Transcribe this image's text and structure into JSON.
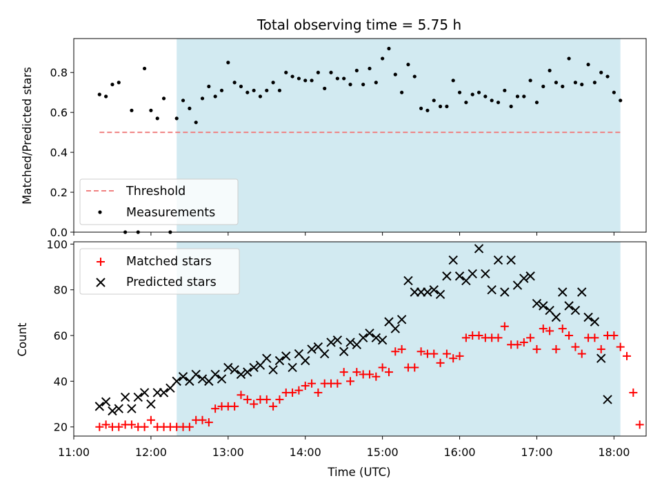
{
  "chart_data": [
    {
      "type": "scatter",
      "title": "Total observing time = 5.75 h",
      "ylabel": "Matched/Predicted stars",
      "xlim": [
        "11:00",
        "18:25"
      ],
      "ylim": [
        0,
        0.97
      ],
      "x_tick_labels": [
        "11:00",
        "12:00",
        "13:00",
        "14:00",
        "15:00",
        "16:00",
        "17:00",
        "18:00"
      ],
      "y_tick_labels": [
        "0.0",
        "0.2",
        "0.4",
        "0.6",
        "0.8"
      ],
      "y_ticks": [
        0,
        0.2,
        0.4,
        0.6,
        0.8
      ],
      "shaded_span": {
        "start": "12:20",
        "end": "18:05",
        "color": "#add8e6"
      },
      "legend": {
        "position": "lower-left",
        "entries": [
          "Threshold",
          "Measurements"
        ]
      },
      "threshold": {
        "name": "Threshold",
        "y": 0.5,
        "x_start": "11:20",
        "x_end": "18:05",
        "color": "#f08080"
      },
      "series": [
        {
          "name": "Measurements",
          "color": "#000000",
          "marker": "dot",
          "points": [
            [
              "11:20",
              0.69
            ],
            [
              "11:25",
              0.68
            ],
            [
              "11:30",
              0.74
            ],
            [
              "11:35",
              0.75
            ],
            [
              "11:40",
              0.0
            ],
            [
              "11:45",
              0.61
            ],
            [
              "11:50",
              0.0
            ],
            [
              "11:55",
              0.82
            ],
            [
              "12:00",
              0.61
            ],
            [
              "12:05",
              0.57
            ],
            [
              "12:10",
              0.67
            ],
            [
              "12:15",
              0.0
            ],
            [
              "12:20",
              0.57
            ],
            [
              "12:25",
              0.66
            ],
            [
              "12:30",
              0.62
            ],
            [
              "12:35",
              0.55
            ],
            [
              "12:40",
              0.67
            ],
            [
              "12:45",
              0.73
            ],
            [
              "12:50",
              0.68
            ],
            [
              "12:55",
              0.71
            ],
            [
              "13:00",
              0.85
            ],
            [
              "13:05",
              0.75
            ],
            [
              "13:10",
              0.73
            ],
            [
              "13:15",
              0.7
            ],
            [
              "13:20",
              0.71
            ],
            [
              "13:25",
              0.68
            ],
            [
              "13:30",
              0.71
            ],
            [
              "13:35",
              0.75
            ],
            [
              "13:40",
              0.71
            ],
            [
              "13:45",
              0.8
            ],
            [
              "13:50",
              0.78
            ],
            [
              "13:55",
              0.77
            ],
            [
              "14:00",
              0.76
            ],
            [
              "14:05",
              0.76
            ],
            [
              "14:10",
              0.8
            ],
            [
              "14:15",
              0.72
            ],
            [
              "14:20",
              0.8
            ],
            [
              "14:25",
              0.77
            ],
            [
              "14:30",
              0.77
            ],
            [
              "14:35",
              0.74
            ],
            [
              "14:40",
              0.81
            ],
            [
              "14:45",
              0.74
            ],
            [
              "14:50",
              0.82
            ],
            [
              "14:55",
              0.75
            ],
            [
              "15:00",
              0.87
            ],
            [
              "15:05",
              0.92
            ],
            [
              "15:10",
              0.79
            ],
            [
              "15:15",
              0.7
            ],
            [
              "15:20",
              0.84
            ],
            [
              "15:25",
              0.78
            ],
            [
              "15:30",
              0.62
            ],
            [
              "15:35",
              0.61
            ],
            [
              "15:40",
              0.66
            ],
            [
              "15:45",
              0.63
            ],
            [
              "15:50",
              0.63
            ],
            [
              "15:55",
              0.76
            ],
            [
              "16:00",
              0.7
            ],
            [
              "16:05",
              0.65
            ],
            [
              "16:10",
              0.69
            ],
            [
              "16:15",
              0.7
            ],
            [
              "16:20",
              0.68
            ],
            [
              "16:25",
              0.66
            ],
            [
              "16:30",
              0.65
            ],
            [
              "16:35",
              0.71
            ],
            [
              "16:40",
              0.63
            ],
            [
              "16:45",
              0.68
            ],
            [
              "16:50",
              0.68
            ],
            [
              "16:55",
              0.76
            ],
            [
              "17:00",
              0.65
            ],
            [
              "17:05",
              0.73
            ],
            [
              "17:10",
              0.81
            ],
            [
              "17:15",
              0.75
            ],
            [
              "17:20",
              0.73
            ],
            [
              "17:25",
              0.87
            ],
            [
              "17:30",
              0.75
            ],
            [
              "17:35",
              0.74
            ],
            [
              "17:40",
              0.84
            ],
            [
              "17:45",
              0.75
            ],
            [
              "17:50",
              0.8
            ],
            [
              "17:55",
              0.78
            ],
            [
              "18:00",
              0.7
            ],
            [
              "18:05",
              0.66
            ]
          ]
        }
      ]
    },
    {
      "type": "scatter",
      "xlabel": "Time (UTC)",
      "ylabel": "Count",
      "xlim": [
        "11:00",
        "18:25"
      ],
      "ylim": [
        16,
        101
      ],
      "x_tick_labels": [
        "11:00",
        "12:00",
        "13:00",
        "14:00",
        "15:00",
        "16:00",
        "17:00",
        "18:00"
      ],
      "y_tick_labels": [
        "20",
        "40",
        "60",
        "80",
        "100"
      ],
      "y_ticks": [
        20,
        40,
        60,
        80,
        100
      ],
      "shaded_span": {
        "start": "12:20",
        "end": "18:05",
        "color": "#add8e6"
      },
      "legend": {
        "position": "upper-left",
        "entries": [
          "Matched stars",
          "Predicted stars"
        ]
      },
      "series": [
        {
          "name": "Matched stars",
          "color": "#ff0000",
          "marker": "plus",
          "points": [
            [
              "11:20",
              20
            ],
            [
              "11:25",
              21
            ],
            [
              "11:30",
              20
            ],
            [
              "11:35",
              20
            ],
            [
              "11:40",
              21
            ],
            [
              "11:45",
              21
            ],
            [
              "11:50",
              20
            ],
            [
              "11:55",
              20
            ],
            [
              "12:00",
              23
            ],
            [
              "12:05",
              20
            ],
            [
              "12:10",
              20
            ],
            [
              "12:15",
              20
            ],
            [
              "12:20",
              20
            ],
            [
              "12:25",
              20
            ],
            [
              "12:30",
              20
            ],
            [
              "12:35",
              23
            ],
            [
              "12:40",
              23
            ],
            [
              "12:45",
              22
            ],
            [
              "12:50",
              28
            ],
            [
              "12:55",
              29
            ],
            [
              "13:00",
              29
            ],
            [
              "13:05",
              29
            ],
            [
              "13:10",
              34
            ],
            [
              "13:15",
              32
            ],
            [
              "13:20",
              30
            ],
            [
              "13:25",
              32
            ],
            [
              "13:30",
              32
            ],
            [
              "13:35",
              29
            ],
            [
              "13:40",
              32
            ],
            [
              "13:45",
              35
            ],
            [
              "13:50",
              35
            ],
            [
              "13:55",
              36
            ],
            [
              "14:00",
              38
            ],
            [
              "14:05",
              39
            ],
            [
              "14:10",
              35
            ],
            [
              "14:15",
              39
            ],
            [
              "14:20",
              39
            ],
            [
              "14:25",
              39
            ],
            [
              "14:30",
              44
            ],
            [
              "14:35",
              40
            ],
            [
              "14:40",
              44
            ],
            [
              "14:45",
              43
            ],
            [
              "14:50",
              43
            ],
            [
              "14:55",
              42
            ],
            [
              "15:00",
              46
            ],
            [
              "15:05",
              44
            ],
            [
              "15:10",
              53
            ],
            [
              "15:15",
              54
            ],
            [
              "15:20",
              46
            ],
            [
              "15:25",
              46
            ],
            [
              "15:30",
              53
            ],
            [
              "15:35",
              52
            ],
            [
              "15:40",
              52
            ],
            [
              "15:45",
              48
            ],
            [
              "15:50",
              52
            ],
            [
              "15:55",
              50
            ],
            [
              "16:00",
              51
            ],
            [
              "16:05",
              59
            ],
            [
              "16:10",
              60
            ],
            [
              "16:15",
              60
            ],
            [
              "16:20",
              59
            ],
            [
              "16:25",
              59
            ],
            [
              "16:30",
              59
            ],
            [
              "16:35",
              64
            ],
            [
              "16:40",
              56
            ],
            [
              "16:45",
              56
            ],
            [
              "16:50",
              57
            ],
            [
              "16:55",
              59
            ],
            [
              "17:00",
              54
            ],
            [
              "17:05",
              63
            ],
            [
              "17:10",
              62
            ],
            [
              "17:15",
              54
            ],
            [
              "17:20",
              63
            ],
            [
              "17:25",
              60
            ],
            [
              "17:30",
              55
            ],
            [
              "17:35",
              52
            ],
            [
              "17:40",
              59
            ],
            [
              "17:45",
              59
            ],
            [
              "17:50",
              54
            ],
            [
              "17:55",
              60
            ],
            [
              "18:00",
              60
            ],
            [
              "18:05",
              55
            ],
            [
              "18:10",
              51
            ],
            [
              "18:15",
              35
            ],
            [
              "18:20",
              21
            ]
          ]
        },
        {
          "name": "Predicted stars",
          "color": "#000000",
          "marker": "x",
          "points": [
            [
              "11:20",
              29
            ],
            [
              "11:25",
              31
            ],
            [
              "11:30",
              27
            ],
            [
              "11:35",
              28
            ],
            [
              "11:40",
              33
            ],
            [
              "11:45",
              28
            ],
            [
              "11:50",
              33
            ],
            [
              "11:55",
              35
            ],
            [
              "12:00",
              30
            ],
            [
              "12:05",
              35
            ],
            [
              "12:10",
              35
            ],
            [
              "12:15",
              37
            ],
            [
              "12:20",
              40
            ],
            [
              "12:25",
              42
            ],
            [
              "12:30",
              40
            ],
            [
              "12:35",
              43
            ],
            [
              "12:40",
              41
            ],
            [
              "12:45",
              40
            ],
            [
              "12:50",
              43
            ],
            [
              "12:55",
              41
            ],
            [
              "13:00",
              46
            ],
            [
              "13:05",
              45
            ],
            [
              "13:10",
              43
            ],
            [
              "13:15",
              44
            ],
            [
              "13:20",
              46
            ],
            [
              "13:25",
              47
            ],
            [
              "13:30",
              50
            ],
            [
              "13:35",
              45
            ],
            [
              "13:40",
              49
            ],
            [
              "13:45",
              51
            ],
            [
              "13:50",
              46
            ],
            [
              "13:55",
              52
            ],
            [
              "14:00",
              49
            ],
            [
              "14:05",
              54
            ],
            [
              "14:10",
              55
            ],
            [
              "14:15",
              52
            ],
            [
              "14:20",
              57
            ],
            [
              "14:25",
              58
            ],
            [
              "14:30",
              53
            ],
            [
              "14:35",
              57
            ],
            [
              "14:40",
              56
            ],
            [
              "14:45",
              59
            ],
            [
              "14:50",
              61
            ],
            [
              "14:55",
              59
            ],
            [
              "15:00",
              58
            ],
            [
              "15:05",
              66
            ],
            [
              "15:10",
              63
            ],
            [
              "15:15",
              67
            ],
            [
              "15:20",
              84
            ],
            [
              "15:25",
              79
            ],
            [
              "15:30",
              79
            ],
            [
              "15:35",
              79
            ],
            [
              "15:40",
              80
            ],
            [
              "15:45",
              78
            ],
            [
              "15:50",
              86
            ],
            [
              "15:55",
              93
            ],
            [
              "16:00",
              86
            ],
            [
              "16:05",
              84
            ],
            [
              "16:10",
              87
            ],
            [
              "16:15",
              98
            ],
            [
              "16:20",
              87
            ],
            [
              "16:25",
              80
            ],
            [
              "16:30",
              93
            ],
            [
              "16:35",
              79
            ],
            [
              "16:40",
              93
            ],
            [
              "16:45",
              82
            ],
            [
              "16:50",
              85
            ],
            [
              "16:55",
              86
            ],
            [
              "17:00",
              74
            ],
            [
              "17:05",
              73
            ],
            [
              "17:10",
              71
            ],
            [
              "17:15",
              68
            ],
            [
              "17:20",
              79
            ],
            [
              "17:25",
              73
            ],
            [
              "17:30",
              71
            ],
            [
              "17:35",
              79
            ],
            [
              "17:40",
              68
            ],
            [
              "17:45",
              66
            ],
            [
              "17:50",
              50
            ],
            [
              "17:55",
              32
            ]
          ]
        }
      ]
    }
  ]
}
